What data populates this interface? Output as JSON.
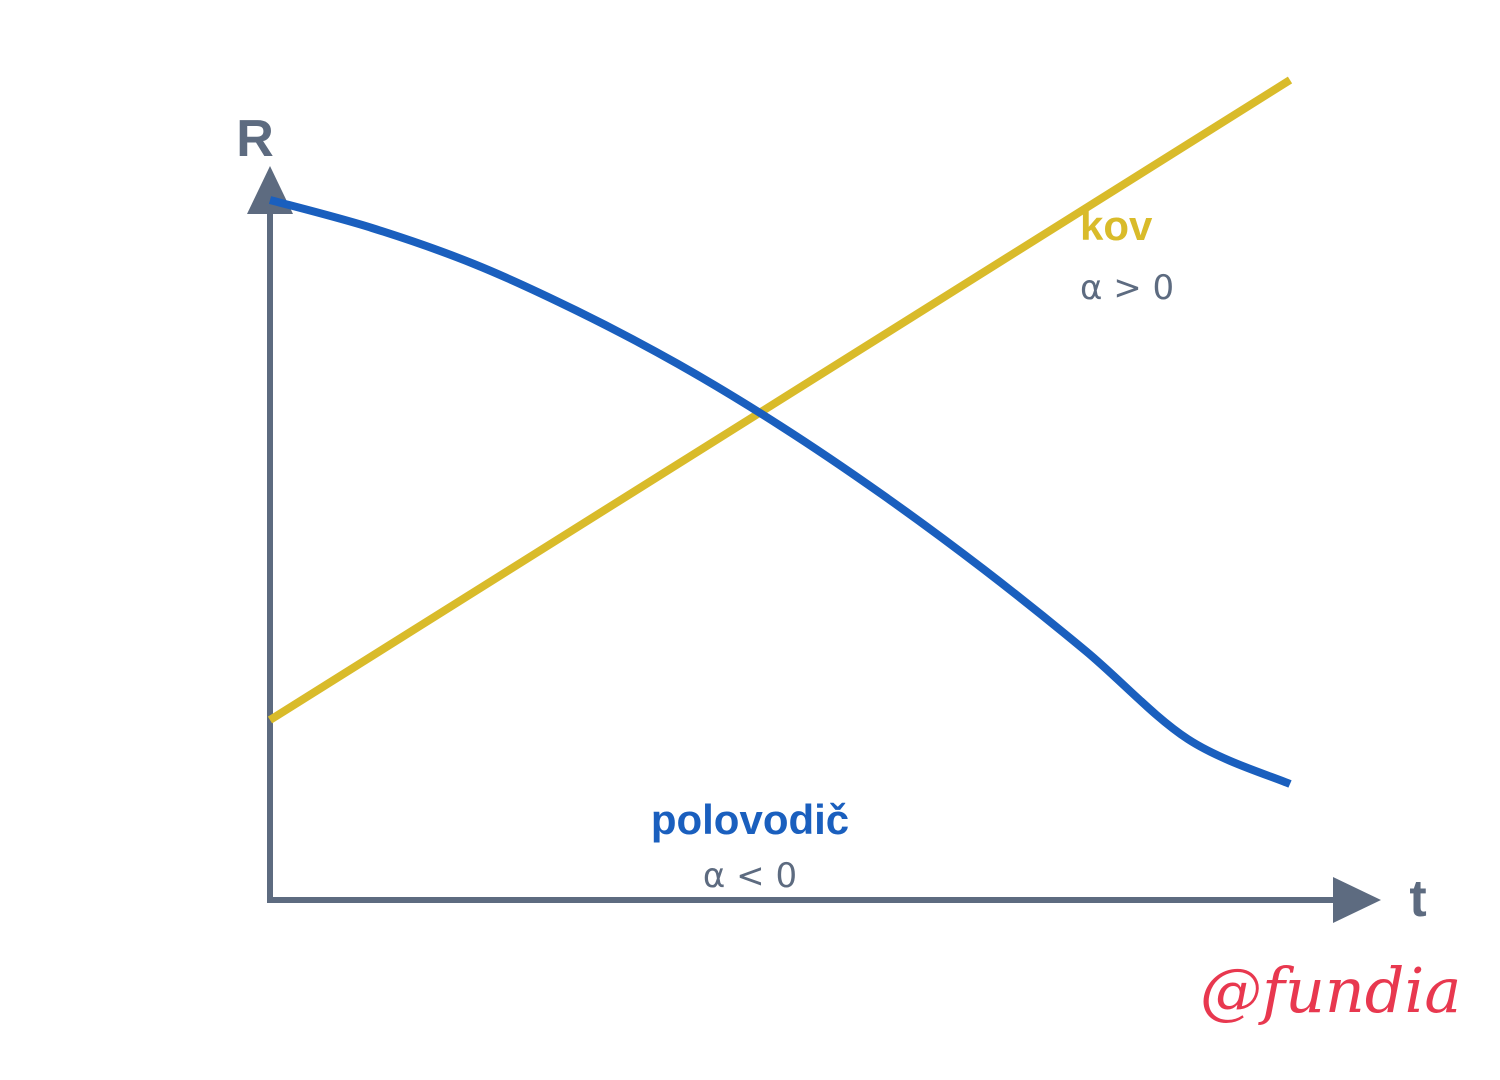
{
  "chart_data": {
    "type": "line",
    "title": "",
    "xlabel": "t",
    "ylabel": "R",
    "xlim": [
      0,
      10
    ],
    "ylim": [
      0,
      10
    ],
    "grid": false,
    "series": [
      {
        "name": "kov",
        "note": "α > 0",
        "color": "#d9bb2a",
        "x": [
          0,
          10
        ],
        "y": [
          3.5,
          11.5
        ]
      },
      {
        "name": "polovodič",
        "note": "α < 0",
        "color": "#1a5fbe",
        "x": [
          0,
          1,
          2,
          3,
          4,
          5,
          6,
          7,
          8,
          9,
          10
        ],
        "y": [
          10.0,
          9.65,
          9.2,
          8.62,
          7.95,
          7.18,
          6.32,
          5.38,
          4.36,
          3.26,
          2.7
        ]
      }
    ]
  },
  "watermark": "@fundia"
}
